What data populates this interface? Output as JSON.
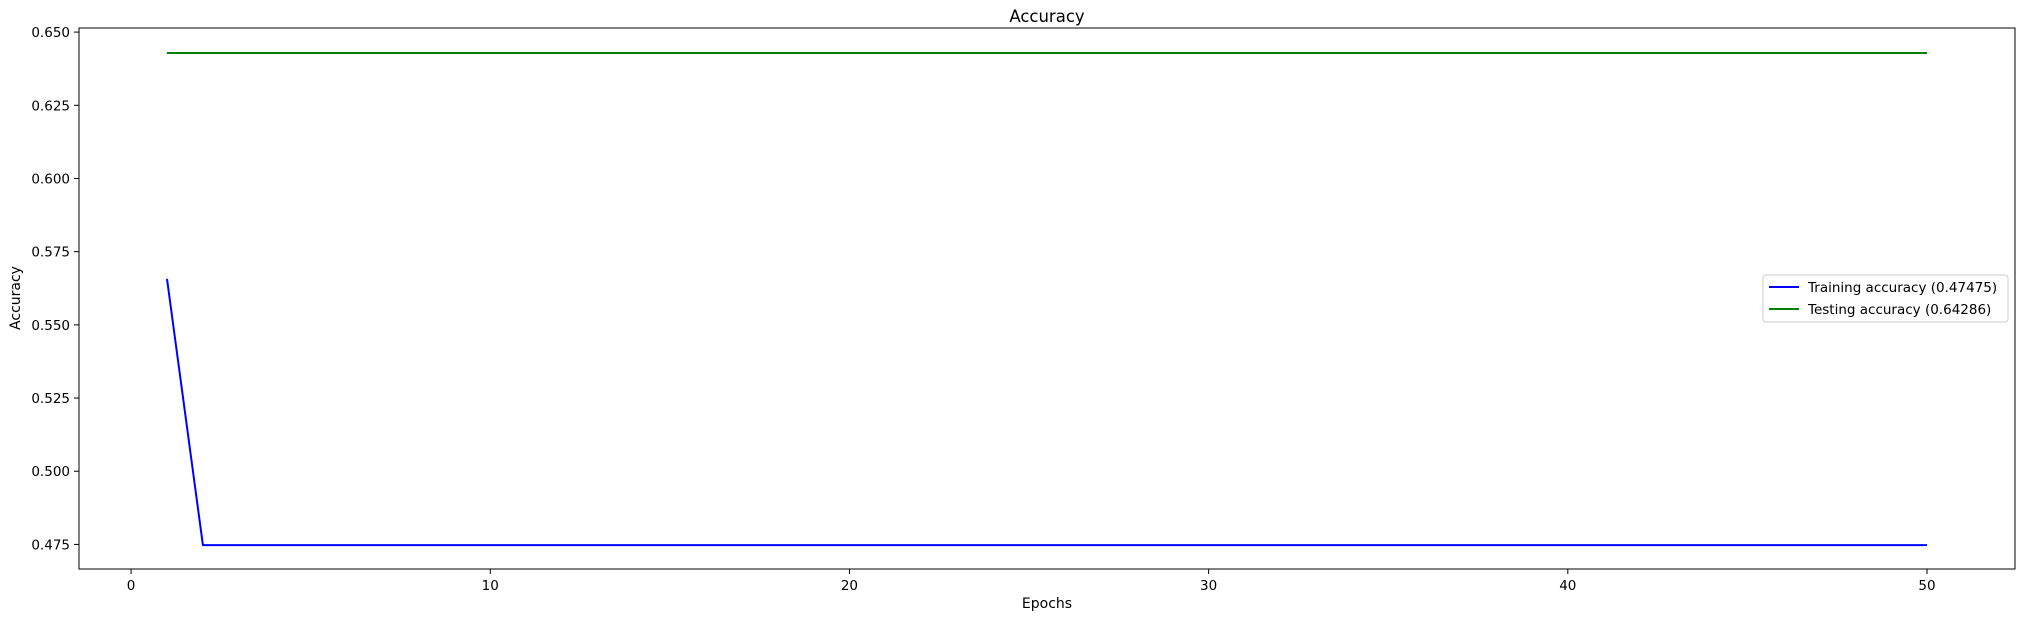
{
  "chart_data": {
    "type": "line",
    "title": "Accuracy",
    "xlabel": "Epochs",
    "ylabel": "Accuracy",
    "xlim": [
      -1.45,
      52.45
    ],
    "ylim": [
      0.4666,
      0.6514
    ],
    "xticks": [
      0,
      10,
      20,
      30,
      40,
      50
    ],
    "yticks": [
      0.475,
      0.5,
      0.525,
      0.55,
      0.575,
      0.6,
      0.625,
      0.65
    ],
    "ytick_labels": [
      "0.475",
      "0.500",
      "0.525",
      "0.550",
      "0.575",
      "0.600",
      "0.625",
      "0.650"
    ],
    "grid": false,
    "legend_position": "center-right",
    "series": [
      {
        "name": "Training accuracy (0.47475)",
        "color": "#0000ff",
        "x": [
          1,
          2,
          50
        ],
        "y": [
          0.5657,
          0.47475,
          0.47475
        ]
      },
      {
        "name": "Testing accuracy (0.64286)",
        "color": "#008000",
        "x": [
          1,
          50
        ],
        "y": [
          0.64286,
          0.64286
        ]
      }
    ]
  }
}
